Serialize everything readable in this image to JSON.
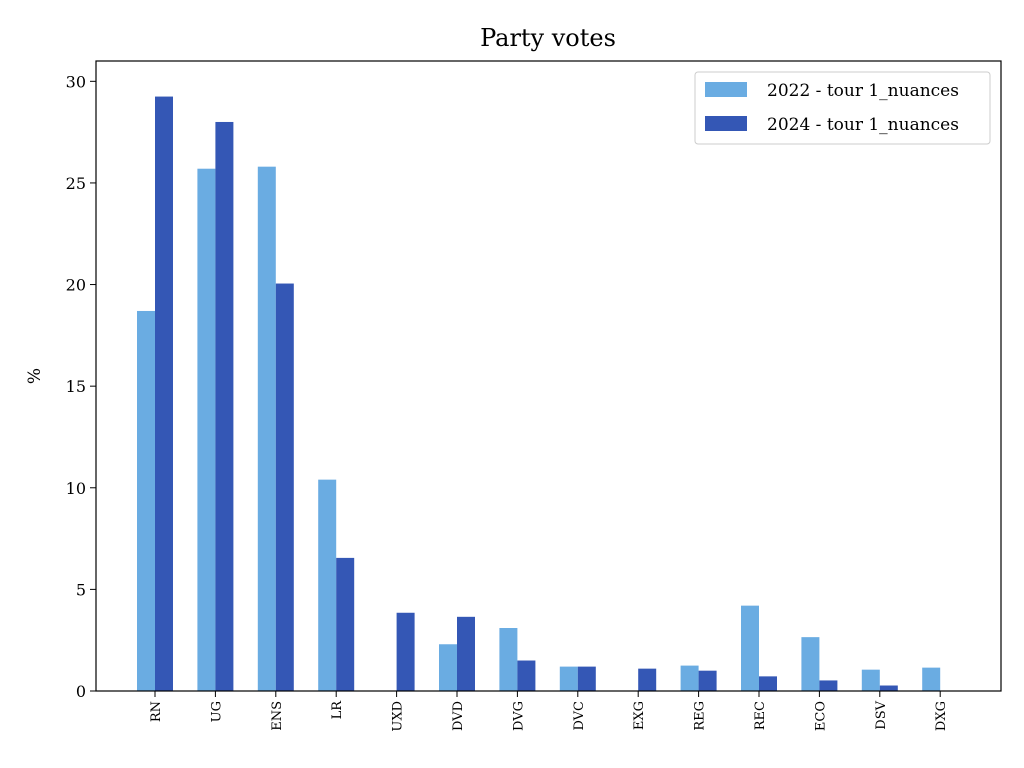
{
  "chart_data": {
    "type": "bar",
    "title": "Party votes",
    "xlabel": "",
    "ylabel": "%",
    "ylim": [
      0,
      31
    ],
    "yticks": [
      0,
      5,
      10,
      15,
      20,
      25,
      30
    ],
    "categories": [
      "RN",
      "UG",
      "ENS",
      "LR",
      "UXD",
      "DVD",
      "DVG",
      "DVC",
      "EXG",
      "REG",
      "REC",
      "ECO",
      "DSV",
      "DXG"
    ],
    "series": [
      {
        "name": "2022 - tour 1_nuances",
        "color": "#6aace2",
        "values": [
          18.7,
          25.7,
          25.8,
          10.4,
          0,
          2.3,
          3.1,
          1.2,
          0,
          1.25,
          4.2,
          2.65,
          1.05,
          1.15
        ]
      },
      {
        "name": "2024 - tour 1_nuances",
        "color": "#3457b5",
        "values": [
          29.25,
          28.0,
          20.05,
          6.55,
          3.85,
          3.65,
          1.5,
          1.2,
          1.1,
          1.0,
          0.72,
          0.52,
          0.27,
          0
        ]
      }
    ],
    "legend_position": "top-right",
    "grid": false
  }
}
